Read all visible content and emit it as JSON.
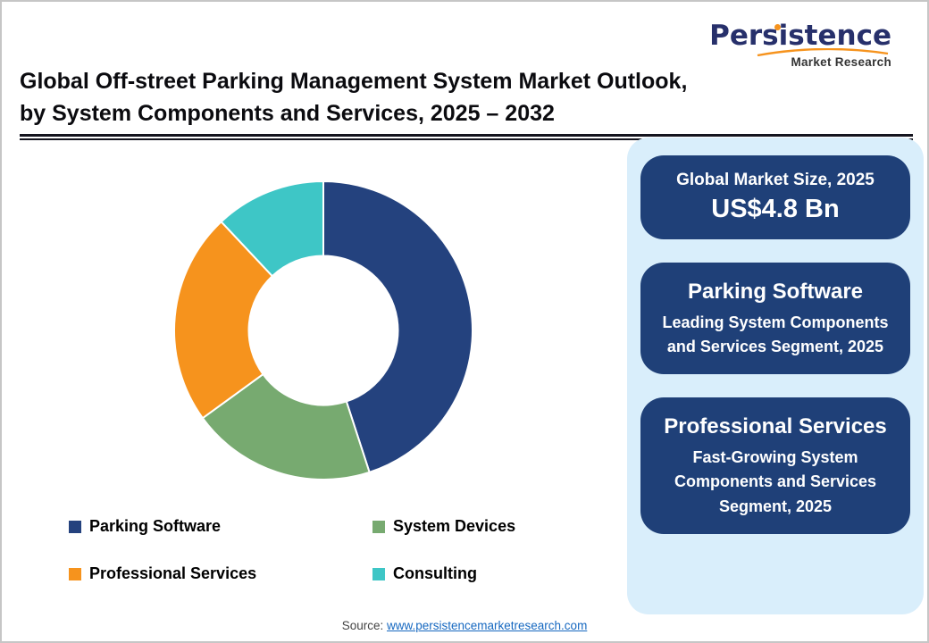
{
  "brand": {
    "name": "Persistence",
    "tagline": "Market Research",
    "accent_color": "#f6931d",
    "navy_color": "#27306b"
  },
  "header": {
    "title_line1": "Global Off-street Parking Management System Market Outlook,",
    "title_line2": "by System Components and Services, 2025 – 2032"
  },
  "chart_data": {
    "type": "pie",
    "donut": true,
    "title": "Global Off-street Parking Management System Market Outlook, by System Components and Services, 2025 – 2032",
    "categories": [
      "Parking Software",
      "System Devices",
      "Professional Services",
      "Consulting"
    ],
    "values": [
      45,
      20,
      23,
      12
    ],
    "values_note": "estimated percent shares read from segment angles; no data labels shown",
    "colors": [
      "#24427e",
      "#77aa70",
      "#f6931d",
      "#3ec6c6"
    ],
    "start_angle_deg": 0,
    "inner_radius_ratio": 0.5,
    "legend_position": "bottom-left"
  },
  "legend": [
    {
      "label": "Parking Software",
      "color": "#24427e"
    },
    {
      "label": "System Devices",
      "color": "#77aa70"
    },
    {
      "label": "Professional Services",
      "color": "#f6931d"
    },
    {
      "label": "Consulting",
      "color": "#3ec6c6"
    }
  ],
  "side_panel": {
    "background": "#d9eefb",
    "card_color": "#1f4078",
    "cards": [
      {
        "title": "Global Market Size, 2025",
        "value": "US$4.8 Bn",
        "subtitle": ""
      },
      {
        "title": "Parking Software",
        "value": "",
        "subtitle": "Leading System Components and Services Segment, 2025"
      },
      {
        "title": "Professional Services",
        "value": "",
        "subtitle": "Fast-Growing System Components and Services Segment, 2025"
      }
    ]
  },
  "footer": {
    "source_label": "Source:",
    "source_link": "www.persistencemarketresearch.com"
  }
}
